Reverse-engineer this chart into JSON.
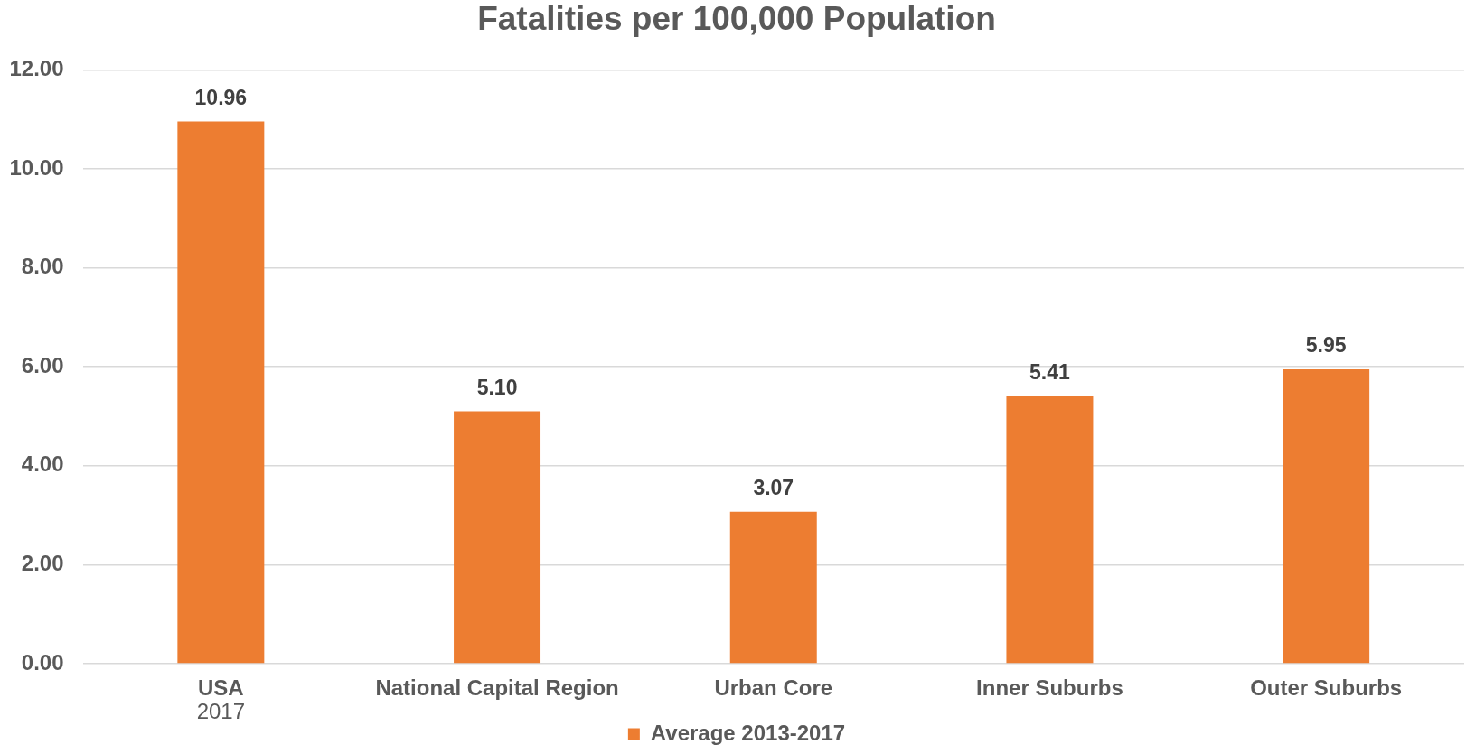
{
  "chart_data": {
    "type": "bar",
    "title": "Fatalities per 100,000 Population",
    "categories": [
      "USA\n2017",
      "National Capital Region",
      "Urban Core",
      "Inner Suburbs",
      "Outer Suburbs"
    ],
    "series": [
      {
        "name": "Average 2013-2017",
        "color": "#ed7d31",
        "values": [
          10.96,
          5.1,
          3.07,
          5.41,
          5.95
        ],
        "value_labels": [
          "10.96",
          "5.10",
          "3.07",
          "5.41",
          "5.95"
        ]
      }
    ],
    "ylim": [
      0,
      12
    ],
    "yticks": [
      {
        "value": 0,
        "label": "0.00"
      },
      {
        "value": 2,
        "label": "2.00"
      },
      {
        "value": 4,
        "label": "4.00"
      },
      {
        "value": 6,
        "label": "6.00"
      },
      {
        "value": 8,
        "label": "8.00"
      },
      {
        "value": 10,
        "label": "10.00"
      },
      {
        "value": 12,
        "label": "12.00"
      }
    ],
    "grid": "y",
    "legend": "bottom"
  }
}
